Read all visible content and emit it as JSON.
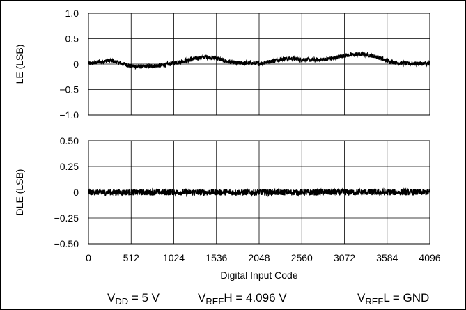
{
  "chart_data": [
    {
      "type": "line",
      "title": "",
      "xlabel": "",
      "ylabel": "LE (LSB)",
      "xlim": [
        0,
        4096
      ],
      "ylim": [
        -1.0,
        1.0
      ],
      "grid": true,
      "ytick_labels": [
        "1.0",
        "0.5",
        "0",
        "−0.5",
        "−1.0"
      ],
      "yticks": [
        1.0,
        0.5,
        0,
        -0.5,
        -1.0
      ],
      "series": [
        {
          "x": [
            0,
            128,
            256,
            384,
            512,
            640,
            768,
            896,
            1024,
            1152,
            1280,
            1408,
            1536,
            1664,
            1792,
            1920,
            2048,
            2176,
            2304,
            2432,
            2560,
            2688,
            2816,
            2944,
            3072,
            3200,
            3328,
            3456,
            3584,
            3712,
            3840,
            3968,
            4096
          ],
          "y": [
            0.01,
            0.04,
            0.07,
            0.02,
            -0.04,
            -0.05,
            -0.04,
            -0.02,
            0.02,
            0.06,
            0.11,
            0.14,
            0.12,
            0.05,
            0.02,
            0.02,
            0.01,
            0.05,
            0.1,
            0.11,
            0.09,
            0.08,
            0.09,
            0.12,
            0.17,
            0.19,
            0.19,
            0.15,
            0.06,
            0.02,
            0.01,
            0.01,
            0.01
          ],
          "noise": 0.04
        }
      ]
    },
    {
      "type": "line",
      "title": "",
      "xlabel": "Digital Input Code",
      "ylabel": "DLE (LSB)",
      "xlim": [
        0,
        4096
      ],
      "ylim": [
        -0.5,
        0.5
      ],
      "grid": true,
      "ytick_labels": [
        "0.50",
        "0.25",
        "0",
        "−0.25",
        "−0.50"
      ],
      "yticks": [
        0.5,
        0.25,
        0,
        -0.25,
        -0.5
      ],
      "xticks": [
        0,
        512,
        1024,
        1536,
        2048,
        2560,
        3072,
        3584,
        4096
      ],
      "xtick_labels": [
        "0",
        "512",
        "1024",
        "1536",
        "2048",
        "2560",
        "3072",
        "3584",
        "4096"
      ],
      "series": [
        {
          "x": [
            0,
            4096
          ],
          "y": [
            0,
            0
          ],
          "noise": 0.03
        }
      ]
    }
  ],
  "conditions": {
    "vdd": {
      "prefix": "V",
      "sub": "DD",
      "suffix": " = 5 V"
    },
    "vrefh": {
      "prefix": "V",
      "sub": "REF",
      "suffix": "H = 4.096 V"
    },
    "vrefl": {
      "prefix": "V",
      "sub": "REF",
      "suffix": "L = GND"
    }
  },
  "colors": {
    "trace": "#000000",
    "grid": "#000000"
  }
}
